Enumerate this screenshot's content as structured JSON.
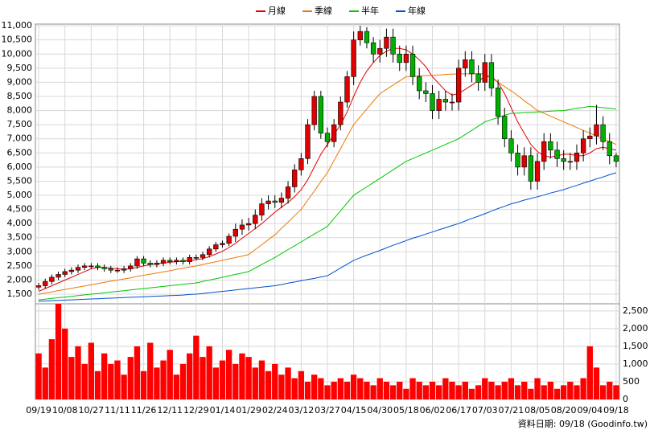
{
  "chart_data": {
    "type": "candlestick",
    "footnote": "資料日期: 09/18 (Goodinfo.tw)",
    "categories": [
      "09/19",
      null,
      null,
      null,
      "10/08",
      null,
      null,
      null,
      "10/27",
      null,
      null,
      null,
      "11/11",
      null,
      null,
      null,
      "11/26",
      null,
      null,
      null,
      "12/11",
      null,
      null,
      null,
      "12/29",
      null,
      null,
      null,
      "01/14",
      null,
      null,
      null,
      "01/29",
      null,
      null,
      null,
      "02/24",
      null,
      null,
      null,
      "03/12",
      null,
      null,
      null,
      "03/27",
      null,
      null,
      null,
      "04/15",
      null,
      null,
      null,
      "04/30",
      null,
      null,
      null,
      "05/18",
      null,
      null,
      null,
      "06/02",
      null,
      null,
      null,
      "06/17",
      null,
      null,
      null,
      "07/03",
      null,
      null,
      null,
      "07/21",
      null,
      null,
      null,
      "08/05",
      null,
      null,
      null,
      "08/20",
      null,
      null,
      null,
      "09/04",
      null,
      null,
      null,
      "09/18"
    ],
    "open": [
      1750,
      1800,
      1950,
      2100,
      2200,
      2300,
      2350,
      2450,
      2500,
      2500,
      2450,
      2400,
      2350,
      2350,
      2400,
      2500,
      2750,
      2600,
      2550,
      2600,
      2700,
      2650,
      2700,
      2650,
      2800,
      2800,
      2900,
      3100,
      3250,
      3300,
      3550,
      3800,
      3950,
      4000,
      4300,
      4700,
      4800,
      4750,
      4900,
      5300,
      5900,
      6300,
      7500,
      8500,
      7200,
      6900,
      7500,
      8300,
      9200,
      10500,
      10800,
      10400,
      10000,
      10200,
      10600,
      10000,
      9700,
      10000,
      9200,
      8700,
      8600,
      8000,
      8400,
      8300,
      8300,
      9500,
      9800,
      9300,
      9000,
      9700,
      8800,
      7800,
      7000,
      6500,
      6000,
      6400,
      5500,
      6200,
      6900,
      6600,
      6300,
      6200,
      6200,
      6500,
      7000,
      7100,
      7500,
      6900,
      6400
    ],
    "high": [
      1900,
      2050,
      2200,
      2300,
      2400,
      2450,
      2550,
      2600,
      2600,
      2600,
      2550,
      2500,
      2450,
      2500,
      2600,
      2850,
      2850,
      2700,
      2700,
      2800,
      2800,
      2800,
      2800,
      2900,
      2900,
      3000,
      3200,
      3350,
      3400,
      3650,
      4000,
      4150,
      4200,
      4500,
      4900,
      5000,
      5000,
      5100,
      5500,
      6100,
      6500,
      7700,
      8700,
      8700,
      7400,
      7700,
      8500,
      9400,
      10800,
      11000,
      10950,
      10600,
      10500,
      10900,
      10900,
      10300,
      10300,
      10300,
      9500,
      9000,
      8900,
      8700,
      8700,
      8600,
      9800,
      10100,
      10100,
      9600,
      10000,
      10000,
      9100,
      8100,
      7300,
      6800,
      6700,
      6700,
      6500,
      7200,
      7200,
      6900,
      6600,
      6500,
      6800,
      7300,
      7400,
      8200,
      7800,
      7200,
      6500
    ],
    "low": [
      1650,
      1700,
      1850,
      2000,
      2100,
      2200,
      2250,
      2350,
      2400,
      2350,
      2300,
      2250,
      2250,
      2250,
      2300,
      2400,
      2500,
      2450,
      2450,
      2500,
      2550,
      2550,
      2550,
      2550,
      2700,
      2700,
      2800,
      3000,
      3150,
      3200,
      3350,
      3600,
      3750,
      3800,
      4100,
      4500,
      4550,
      4550,
      4700,
      5100,
      5700,
      6100,
      7300,
      7000,
      6700,
      6700,
      7300,
      8100,
      8900,
      10300,
      10200,
      9700,
      9700,
      9900,
      9700,
      9400,
      9400,
      8900,
      8400,
      8300,
      7700,
      7700,
      8000,
      8000,
      8000,
      9200,
      9000,
      8700,
      8700,
      8500,
      7500,
      6700,
      6200,
      5700,
      5700,
      5200,
      5200,
      5900,
      6300,
      6000,
      5900,
      5900,
      5900,
      6200,
      6700,
      6800,
      6600,
      6100,
      6000
    ],
    "close": [
      1800,
      1950,
      2100,
      2200,
      2300,
      2350,
      2450,
      2500,
      2500,
      2450,
      2400,
      2350,
      2350,
      2400,
      2500,
      2750,
      2600,
      2550,
      2600,
      2700,
      2650,
      2700,
      2650,
      2800,
      2800,
      2900,
      3100,
      3250,
      3300,
      3550,
      3800,
      3950,
      4000,
      4300,
      4700,
      4800,
      4750,
      4900,
      5300,
      5900,
      6300,
      7500,
      8500,
      7200,
      6900,
      7500,
      8300,
      9200,
      10500,
      10800,
      10400,
      10000,
      10200,
      10600,
      10000,
      9700,
      10000,
      9200,
      8700,
      8600,
      8000,
      8400,
      8300,
      8300,
      9500,
      9800,
      9300,
      9000,
      9700,
      8800,
      7800,
      7000,
      6500,
      6000,
      6400,
      5500,
      6200,
      6900,
      6600,
      6300,
      6200,
      6200,
      6500,
      7000,
      7100,
      7500,
      6900,
      6400,
      6200
    ],
    "up_color": "#e00000",
    "down_color": "#00b000",
    "series": [
      {
        "name": "月線",
        "color": "#e00000",
        "values": [
          1600,
          1700,
          1800,
          1900,
          2000,
          2100,
          2200,
          2300,
          2400,
          2450,
          2450,
          2420,
          2400,
          2380,
          2400,
          2450,
          2500,
          2550,
          2580,
          2600,
          2630,
          2650,
          2670,
          2690,
          2720,
          2760,
          2830,
          2920,
          3020,
          3150,
          3300,
          3480,
          3650,
          3820,
          4000,
          4200,
          4400,
          4580,
          4750,
          4950,
          5200,
          5550,
          6000,
          6450,
          6800,
          7150,
          7500,
          7950,
          8500,
          9000,
          9400,
          9700,
          9950,
          10100,
          10200,
          10200,
          10150,
          10000,
          9800,
          9550,
          9200,
          8950,
          8700,
          8550,
          8600,
          8750,
          8900,
          9050,
          9200,
          9200,
          9000,
          8600,
          8100,
          7600,
          7200,
          6800,
          6550,
          6400,
          6350,
          6400,
          6450,
          6450,
          6400,
          6400,
          6500,
          6650,
          6700,
          6650,
          6600
        ]
      },
      {
        "name": "季線",
        "color": "#f07800",
        "values": [
          1500,
          1540,
          1580,
          1630,
          1670,
          1710,
          1750,
          1790,
          1830,
          1880,
          1920,
          1960,
          2000,
          2040,
          2080,
          2130,
          2170,
          2210,
          2250,
          2290,
          2330,
          2380,
          2420,
          2460,
          2500,
          2550,
          2600,
          2650,
          2700,
          2750,
          2800,
          2850,
          2900,
          3080,
          3250,
          3430,
          3600,
          3830,
          4050,
          4280,
          4500,
          4830,
          5150,
          5480,
          5800,
          6230,
          6650,
          7080,
          7500,
          7780,
          8050,
          8330,
          8600,
          8750,
          8900,
          9050,
          9200,
          9210,
          9230,
          9240,
          9250,
          9260,
          9280,
          9290,
          9300,
          9300,
          9300,
          9300,
          9300,
          9150,
          9000,
          8850,
          8700,
          8530,
          8350,
          8180,
          8000,
          7900,
          7800,
          7700,
          7600,
          7500,
          7400,
          7300,
          7200,
          7100,
          7000,
          6900,
          6800
        ]
      },
      {
        "name": "半年",
        "color": "#00c800",
        "values": [
          1300,
          1325,
          1350,
          1375,
          1400,
          1425,
          1450,
          1475,
          1500,
          1525,
          1550,
          1575,
          1600,
          1625,
          1650,
          1675,
          1700,
          1725,
          1750,
          1775,
          1800,
          1825,
          1850,
          1875,
          1900,
          1950,
          2000,
          2050,
          2100,
          2150,
          2200,
          2250,
          2300,
          2425,
          2550,
          2675,
          2800,
          2940,
          3080,
          3210,
          3350,
          3490,
          3630,
          3760,
          3900,
          4180,
          4450,
          4730,
          5000,
          5150,
          5300,
          5450,
          5600,
          5750,
          5900,
          6050,
          6200,
          6300,
          6400,
          6500,
          6600,
          6700,
          6800,
          6900,
          7000,
          7150,
          7300,
          7450,
          7600,
          7680,
          7750,
          7830,
          7900,
          7910,
          7930,
          7940,
          7950,
          7960,
          7980,
          7990,
          8000,
          8040,
          8080,
          8110,
          8150,
          8130,
          8100,
          8080,
          8050
        ]
      },
      {
        "name": "年線",
        "color": "#0050d0",
        "values": [
          1250,
          1260,
          1270,
          1280,
          1290,
          1300,
          1310,
          1320,
          1330,
          1340,
          1350,
          1360,
          1370,
          1380,
          1390,
          1400,
          1410,
          1420,
          1430,
          1440,
          1450,
          1460,
          1470,
          1490,
          1500,
          1525,
          1550,
          1575,
          1600,
          1625,
          1650,
          1675,
          1700,
          1725,
          1750,
          1775,
          1800,
          1840,
          1890,
          1930,
          1980,
          2020,
          2060,
          2110,
          2150,
          2290,
          2430,
          2560,
          2700,
          2790,
          2880,
          2960,
          3050,
          3140,
          3230,
          3310,
          3400,
          3480,
          3550,
          3630,
          3700,
          3780,
          3850,
          3930,
          4000,
          4090,
          4180,
          4260,
          4350,
          4440,
          4530,
          4610,
          4700,
          4760,
          4830,
          4890,
          4950,
          5010,
          5080,
          5140,
          5200,
          5280,
          5350,
          5430,
          5500,
          5580,
          5650,
          5730,
          5800
        ]
      }
    ],
    "volume": {
      "color": "#ff0000",
      "values": [
        1300,
        900,
        1700,
        2700,
        2000,
        1200,
        1500,
        1000,
        1600,
        800,
        1300,
        1000,
        1100,
        700,
        1200,
        1500,
        800,
        1600,
        900,
        1100,
        1400,
        700,
        1000,
        1300,
        1800,
        1200,
        1500,
        900,
        1100,
        1400,
        1000,
        1300,
        1200,
        900,
        1100,
        800,
        1000,
        700,
        900,
        600,
        800,
        500,
        700,
        600,
        400,
        500,
        600,
        500,
        700,
        600,
        500,
        400,
        600,
        500,
        400,
        500,
        300,
        600,
        500,
        400,
        500,
        400,
        600,
        500,
        400,
        500,
        300,
        400,
        600,
        500,
        400,
        500,
        600,
        400,
        500,
        300,
        600,
        400,
        500,
        300,
        400,
        500,
        400,
        600,
        1500,
        900,
        400,
        500,
        400
      ]
    },
    "ylim": [
      1160,
      11060
    ],
    "yticks": [
      {
        "value": 1500,
        "label": "1,500"
      },
      {
        "value": 2000,
        "label": "2,000"
      },
      {
        "value": 2500,
        "label": "2,500"
      },
      {
        "value": 3000,
        "label": "3,000"
      },
      {
        "value": 3500,
        "label": "3,500"
      },
      {
        "value": 4000,
        "label": "4,000"
      },
      {
        "value": 4500,
        "label": "4,500"
      },
      {
        "value": 5000,
        "label": "5,000"
      },
      {
        "value": 5500,
        "label": "5,500"
      },
      {
        "value": 6000,
        "label": "6,000"
      },
      {
        "value": 6500,
        "label": "6,500"
      },
      {
        "value": 7000,
        "label": "7,000"
      },
      {
        "value": 7500,
        "label": "7,500"
      },
      {
        "value": 8000,
        "label": "8,000"
      },
      {
        "value": 8500,
        "label": "8,500"
      },
      {
        "value": 9000,
        "label": "9,000"
      },
      {
        "value": 9500,
        "label": "9,500"
      },
      {
        "value": 10000,
        "label": "10,000"
      },
      {
        "value": 10500,
        "label": "10,500"
      },
      {
        "value": 11000,
        "label": "11,000"
      }
    ],
    "y2lim": [
      0,
      2700
    ],
    "y2ticks": [
      0,
      500,
      {
        "value": 1000,
        "label": "1,000"
      },
      {
        "value": 1500,
        "label": "1,500"
      },
      {
        "value": 2000,
        "label": "2,000"
      },
      {
        "value": 2500,
        "label": "2,500"
      }
    ],
    "grid": true
  }
}
